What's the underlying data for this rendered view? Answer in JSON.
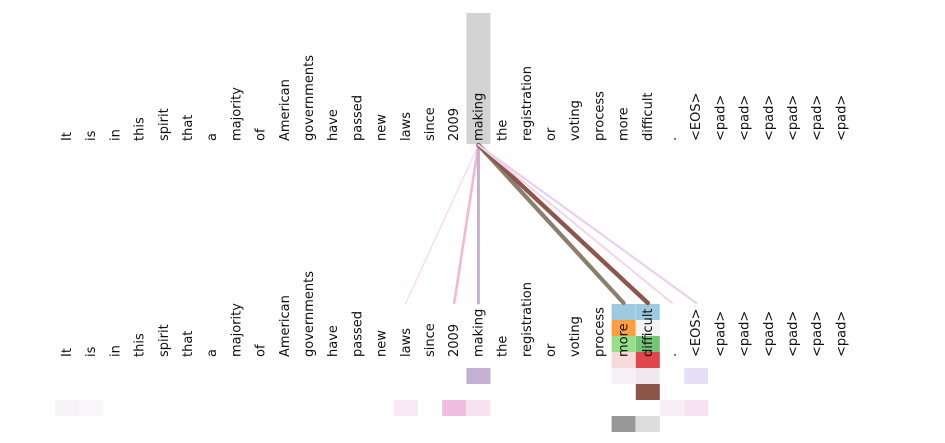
{
  "tokens": [
    "It",
    "is",
    "in",
    "this",
    "spirit",
    "that",
    "a",
    "majority",
    "of",
    "American",
    "governments",
    "have",
    "passed",
    "new",
    "laws",
    "since",
    "2009",
    "making",
    "the",
    "registration",
    "or",
    "voting",
    "process",
    "more",
    "difficult",
    ".",
    "<EOS>",
    "<pad>",
    "<pad>",
    "<pad>",
    "<pad>",
    "<pad>",
    "<pad>"
  ],
  "selected_index": 17,
  "colors": {
    "selected_highlight": "#d3d3d3",
    "purple": "#c5b0d5",
    "pink": "#f7b6d2",
    "brown": "#8c564b",
    "gray": "#7f7f7f",
    "light_pink": "#f1c6e4",
    "blue": "#9ecae1",
    "orange": "#ff9f40",
    "green": "#98df8a",
    "red": "#d62728",
    "dark_gray": "#999999",
    "light_gray": "#dddddd"
  },
  "edges": [
    {
      "target": 14,
      "color": "#f9dcee",
      "weight": 0.15
    },
    {
      "target": 16,
      "color": "#f7b6d2",
      "weight": 0.45
    },
    {
      "target": 17,
      "color": "#c5b0d5",
      "weight": 0.55
    },
    {
      "target": 23,
      "color": "#8c7e6e",
      "weight": 0.85
    },
    {
      "target": 24,
      "color": "#8c564b",
      "weight": 0.9
    },
    {
      "target": 25,
      "color": "#f1d6ea",
      "weight": 0.3
    },
    {
      "target": 26,
      "color": "#e6d2f0",
      "weight": 0.35
    }
  ],
  "cells": [
    {
      "col": 23,
      "row": 0,
      "color": "#9ecae1"
    },
    {
      "col": 24,
      "row": 0,
      "color": "#9ecae1"
    },
    {
      "col": 23,
      "row": 1,
      "color": "#ff9f40"
    },
    {
      "col": 24,
      "row": 1,
      "color": "#f4f4f4"
    },
    {
      "col": 23,
      "row": 2,
      "color": "#98df8a"
    },
    {
      "col": 24,
      "row": 2,
      "color": "#74c476"
    },
    {
      "col": 23,
      "row": 3,
      "color": "#f7dada"
    },
    {
      "col": 24,
      "row": 3,
      "color": "#e0474c"
    },
    {
      "col": 17,
      "row": 4,
      "color": "#c5b0d5"
    },
    {
      "col": 23,
      "row": 4,
      "color": "#f7f0f7"
    },
    {
      "col": 24,
      "row": 4,
      "color": "#efe9ef"
    },
    {
      "col": 26,
      "row": 4,
      "color": "#e6def4"
    },
    {
      "col": 24,
      "row": 5,
      "color": "#8c564b"
    },
    {
      "col": 0,
      "row": 6,
      "color": "#f7f4f7"
    },
    {
      "col": 1,
      "row": 6,
      "color": "#f9f7f9"
    },
    {
      "col": 14,
      "row": 6,
      "color": "#f8e8f3"
    },
    {
      "col": 16,
      "row": 6,
      "color": "#f0bde0"
    },
    {
      "col": 17,
      "row": 6,
      "color": "#f6e1ef"
    },
    {
      "col": 25,
      "row": 6,
      "color": "#f7eef6"
    },
    {
      "col": 26,
      "row": 6,
      "color": "#f5e1f1"
    },
    {
      "col": 23,
      "row": 7,
      "color": "#999999"
    },
    {
      "col": 24,
      "row": 7,
      "color": "#dddddd"
    }
  ]
}
